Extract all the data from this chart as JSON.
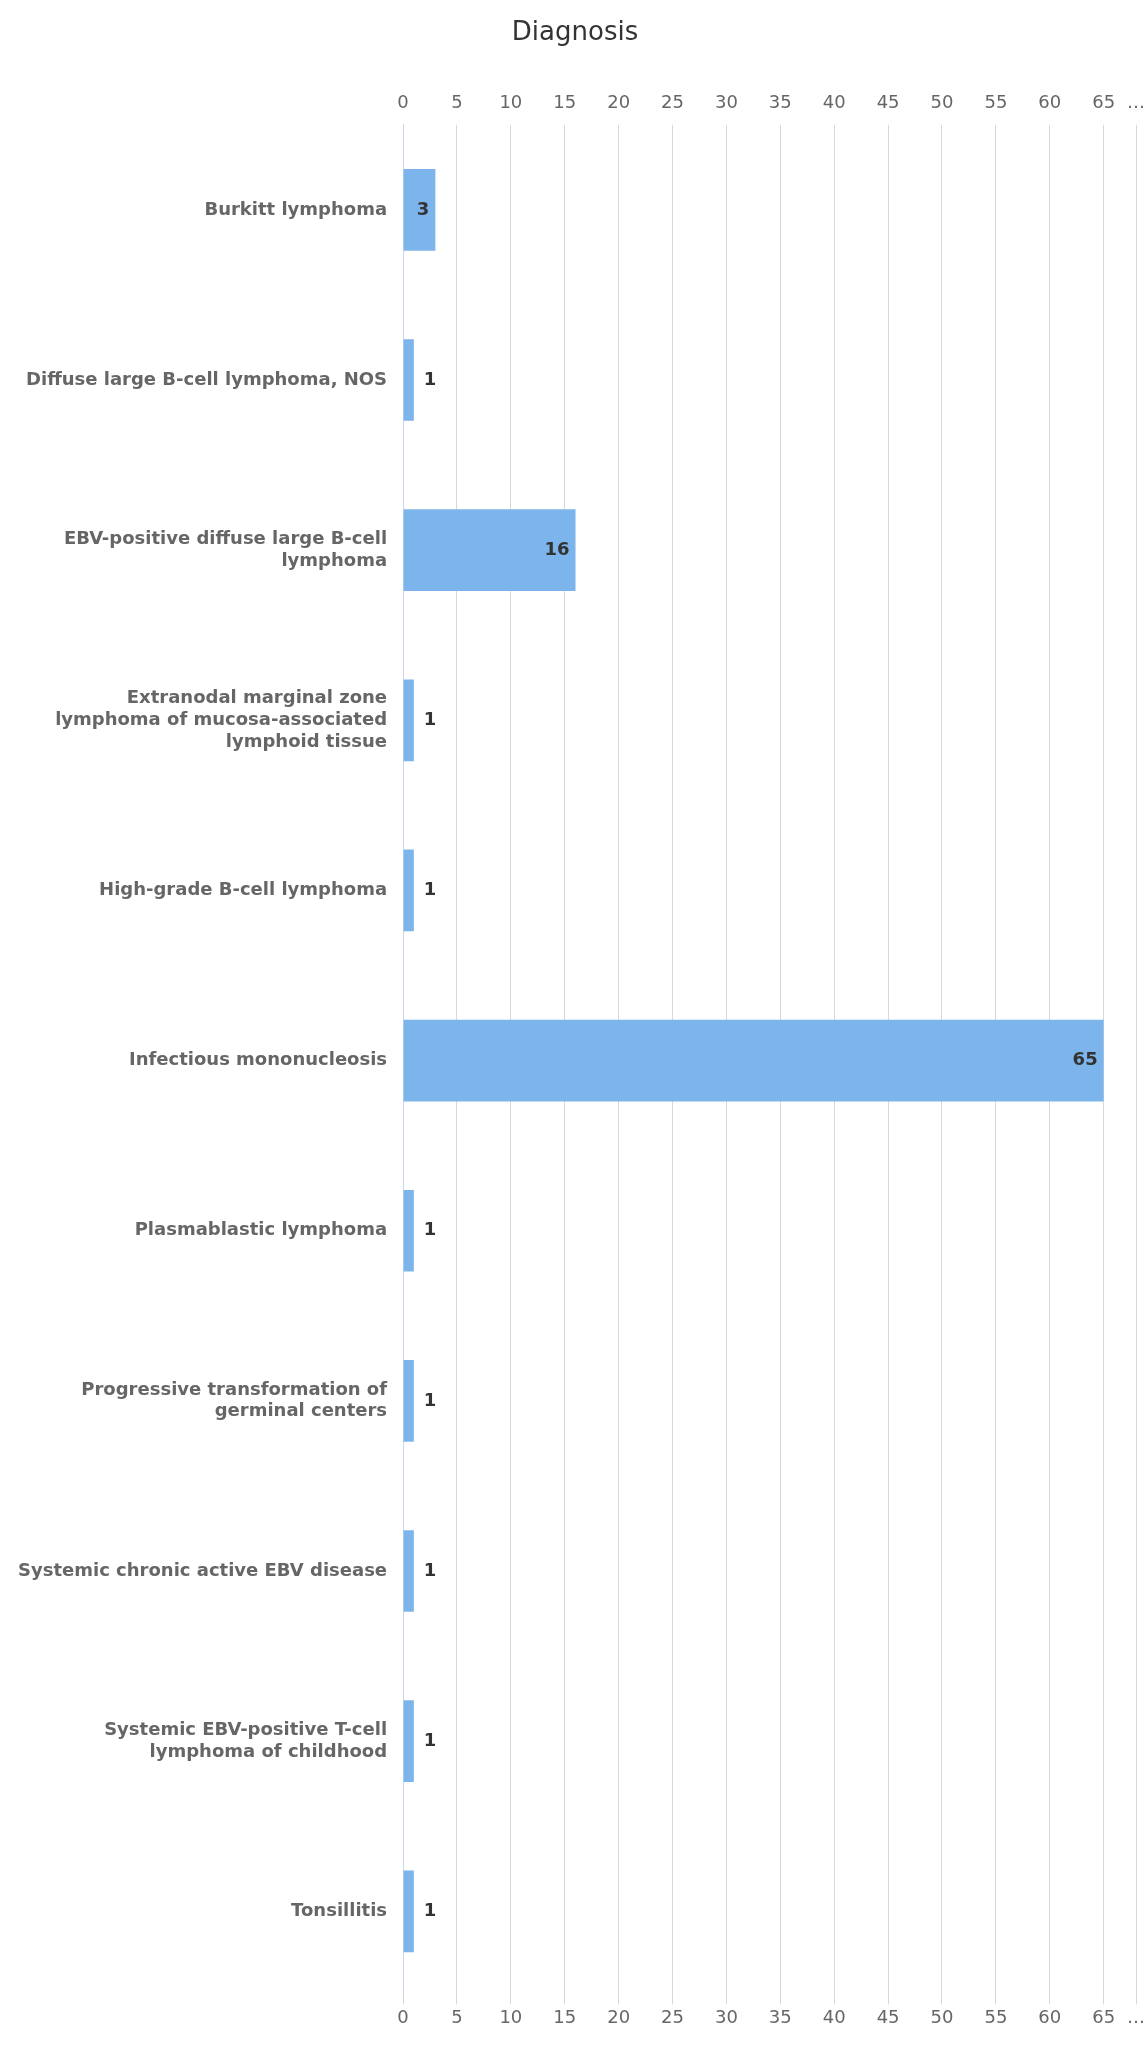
{
  "chart_data": {
    "type": "bar",
    "orientation": "horizontal",
    "title": "Diagnosis",
    "categories": [
      "Burkitt lymphoma",
      "Diffuse large B-cell lymphoma, NOS",
      "EBV-positive diffuse large B-cell lymphoma",
      "Extranodal marginal zone lymphoma of mucosa-associated lymphoid tissue",
      "High-grade B-cell lymphoma",
      "Infectious mononucleosis",
      "Plasmablastic lymphoma",
      "Progressive transformation of germinal centers",
      "Systemic chronic active EBV disease",
      "Systemic EBV-positive T-cell lymphoma of childhood",
      "Tonsillitis"
    ],
    "values": [
      3,
      1,
      16,
      1,
      1,
      65,
      1,
      1,
      1,
      1,
      1
    ],
    "color": "#7cb5ec",
    "xlim": [
      0,
      68
    ],
    "xticks": [
      0,
      5,
      10,
      15,
      20,
      25,
      30,
      35,
      40,
      45,
      50,
      55,
      60,
      65,
      {
        "value": 68,
        "label": "…"
      }
    ],
    "x2lim": [
      0,
      68
    ],
    "x2ticks": [
      0,
      5,
      10,
      15,
      20,
      25,
      30,
      35,
      40,
      45,
      50,
      55,
      60,
      65,
      {
        "value": 68,
        "label": "…"
      }
    ],
    "grid": "x",
    "legend": false,
    "data_labels": true
  }
}
